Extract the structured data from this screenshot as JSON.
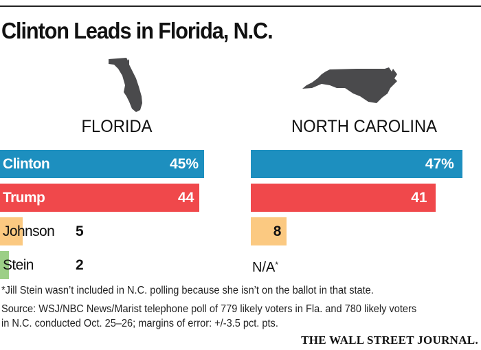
{
  "title": "Clinton Leads in Florida, N.C.",
  "chart_data": {
    "type": "bar",
    "title": "Clinton Leads in Florida, N.C.",
    "orientation": "horizontal",
    "xlim": [
      0,
      50
    ],
    "categories": [
      "Clinton",
      "Trump",
      "Johnson",
      "Stein"
    ],
    "series": [
      {
        "name": "FLORIDA",
        "values": [
          45,
          44,
          5,
          2
        ],
        "labels": [
          "45%",
          "44",
          "5",
          "2"
        ]
      },
      {
        "name": "NORTH CAROLINA",
        "values": [
          47,
          41,
          8,
          null
        ],
        "labels": [
          "47%",
          "41",
          "8",
          null
        ],
        "missing_label": "N/A",
        "missing_marker": "*"
      }
    ],
    "colors": {
      "Clinton": "#1d8fbf",
      "Trump": "#f0484b",
      "Johnson": "#fbc981",
      "Stein": "#9ccf86"
    },
    "label_text_colors": {
      "Clinton": "#ffffff",
      "Trump": "#ffffff",
      "Johnson": "#111111",
      "Stein": "#111111"
    }
  },
  "footnote": "*Jill Stein wasn’t included in N.C. polling because she isn’t on the ballot in that state.",
  "source_lines": [
    "Source: WSJ/NBC News/Marist telephone poll of 779 likely voters in Fla. and 780 likely voters",
    "in N.C. conducted Oct. 25–26; margins of error: +/-3.5 pct. pts."
  ],
  "logo": "THE WALL STREET JOURNAL.",
  "map_color": "#4a4a4c"
}
